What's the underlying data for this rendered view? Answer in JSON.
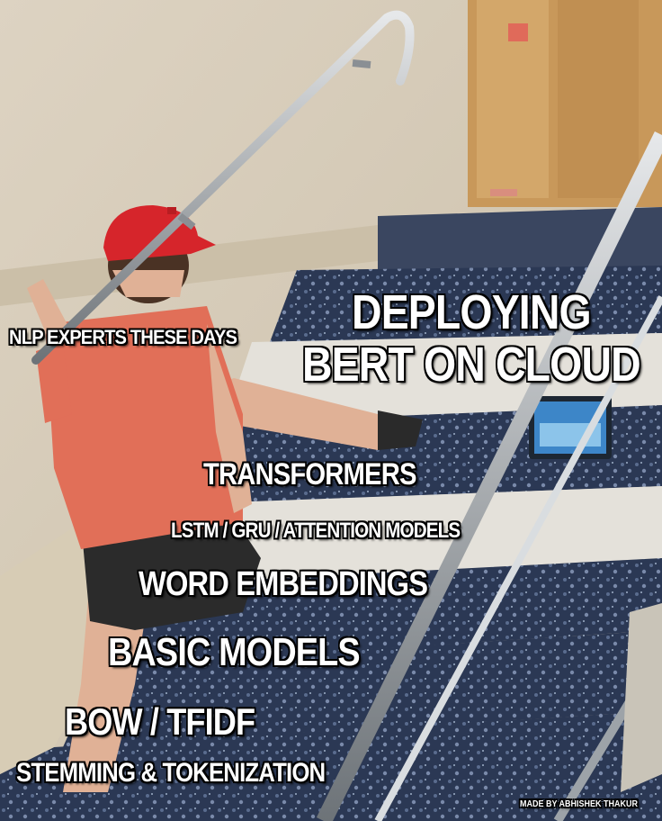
{
  "meme": {
    "expert_label": "NLP EXPERTS THESE DAYS",
    "goal_line1": "DEPLOYING",
    "goal_line2": "BERT ON CLOUD",
    "steps": [
      "STEMMING & TOKENIZATION",
      "BOW / TFIDF",
      "BASIC MODELS",
      "WORD EMBEDDINGS",
      "LSTM / GRU / ATTENTION MODELS",
      "TRANSFORMERS"
    ],
    "credit": "MADE BY ABHISHEK THAKUR"
  },
  "colors": {
    "wall": "#d8cdb8",
    "door": "#c99c5e",
    "carpet": "#2c3a55",
    "cap": "#d8242a",
    "shirt": "#e2705a",
    "skin": "#e8b89a",
    "rail": "#9aa0a6"
  }
}
